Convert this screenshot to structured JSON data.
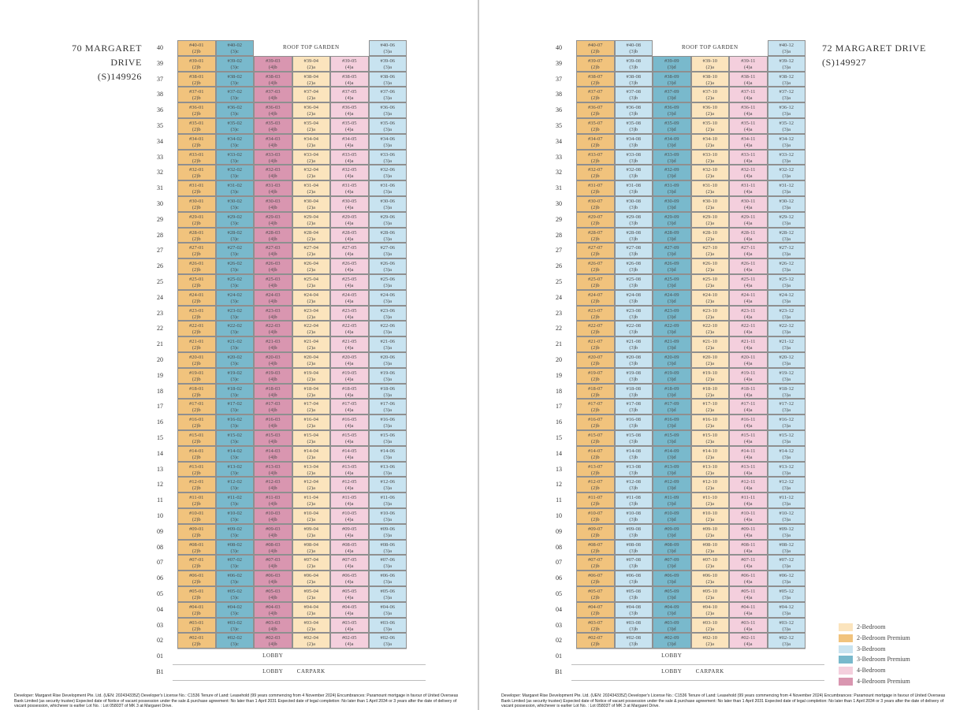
{
  "colors": {
    "2-Bedroom": "#fbe4bd",
    "2-Bedroom Premium": "#f1c37d",
    "3-Bedroom": "#c8e3f0",
    "3-Bedroom Premium": "#79b9cc",
    "4-Bedroom": "#f4cfdd",
    "4-Bedroom Premium": "#d996b0"
  },
  "legend": [
    {
      "label": "2-Bedroom",
      "key": "2-Bedroom"
    },
    {
      "label": "2-Bedroom Premium",
      "key": "2-Bedroom Premium"
    },
    {
      "label": "3-Bedroom",
      "key": "3-Bedroom"
    },
    {
      "label": "3-Bedroom Premium",
      "key": "3-Bedroom Premium"
    },
    {
      "label": "4-Bedroom",
      "key": "4-Bedroom"
    },
    {
      "label": "4-Bedroom Premium",
      "key": "4-Bedroom Premium"
    }
  ],
  "floors": [
    "40",
    "39",
    "37",
    "38",
    "36",
    "35",
    "34",
    "33",
    "32",
    "31",
    "30",
    "29",
    "28",
    "27",
    "26",
    "25",
    "24",
    "23",
    "22",
    "21",
    "20",
    "19",
    "18",
    "17",
    "16",
    "15",
    "14",
    "13",
    "12",
    "11",
    "10",
    "09",
    "08",
    "07",
    "06",
    "05",
    "04",
    "03",
    "02",
    "01",
    "B1"
  ],
  "unit_floors": [
    "39",
    "38",
    "37",
    "36",
    "35",
    "34",
    "33",
    "32",
    "31",
    "30",
    "29",
    "28",
    "27",
    "26",
    "25",
    "24",
    "23",
    "22",
    "21",
    "20",
    "19",
    "18",
    "17",
    "16",
    "15",
    "14",
    "13",
    "12",
    "11",
    "10",
    "09",
    "08",
    "07",
    "06",
    "05",
    "04",
    "03",
    "02"
  ],
  "blocks": [
    {
      "address_line1": "70 MARGARET DRIVE",
      "address_line2": "(S)149926",
      "stacks": [
        {
          "stack": "01",
          "type": "(2)b",
          "key": "2-Bedroom Premium"
        },
        {
          "stack": "02",
          "type": "(3)c",
          "key": "3-Bedroom Premium"
        },
        {
          "stack": "03",
          "type": "(4)b",
          "key": "4-Bedroom Premium"
        },
        {
          "stack": "04",
          "type": "(2)a",
          "key": "2-Bedroom"
        },
        {
          "stack": "05",
          "type": "(4)a",
          "key": "4-Bedroom"
        },
        {
          "stack": "06",
          "type": "(3)a",
          "key": "3-Bedroom"
        }
      ],
      "top_units": [
        {
          "id": "#40-01",
          "type": "(2)b",
          "key": "2-Bedroom Premium"
        },
        {
          "id": "#40-02",
          "type": "(3)c",
          "key": "3-Bedroom Premium"
        },
        {
          "id": "#40-06",
          "type": "(3)a",
          "key": "3-Bedroom"
        }
      ],
      "roof_garden": "ROOF TOP GARDEN",
      "lobby": "LOBBY",
      "carpark": "CARPARK",
      "footer": "Developer: Margaret Rise Development Pte. Ltd. (UEN: 202434335Z)  Developer's License No.: C1536  Tenure of Land: Leasehold (99 years commencing from 4 November 2024)  Encumbrances: Paramount mortgage in favour of United Overseas Bank Limited (as security trustee)  Expected date of Notice of vacant possession under the sale & purchase agreement: No later than 1 April 2031  Expected date of legal completion: No later than 1 April 2034 or 3 years after the date of delivery of vacant possession, whichever is earlier  Lot No. : Lot 05803T of MK 3 at Margaret Drive."
    },
    {
      "address_line1": "72 MARGARET DRIVE",
      "address_line2": "(S)149927",
      "stacks": [
        {
          "stack": "07",
          "type": "(2)b",
          "key": "2-Bedroom Premium"
        },
        {
          "stack": "08",
          "type": "(3)b",
          "key": "3-Bedroom"
        },
        {
          "stack": "09",
          "type": "(3)d",
          "key": "3-Bedroom Premium"
        },
        {
          "stack": "10",
          "type": "(2)a",
          "key": "2-Bedroom"
        },
        {
          "stack": "11",
          "type": "(4)a",
          "key": "4-Bedroom"
        },
        {
          "stack": "12",
          "type": "(3)a",
          "key": "3-Bedroom"
        }
      ],
      "top_units": [
        {
          "id": "#40-07",
          "type": "(2)b",
          "key": "2-Bedroom Premium"
        },
        {
          "id": "#40-08",
          "type": "(3)b",
          "key": "3-Bedroom"
        },
        {
          "id": "#40-12",
          "type": "(3)a",
          "key": "3-Bedroom"
        }
      ],
      "roof_garden": "ROOF TOP GARDEN",
      "lobby": "LOBBY",
      "carpark": "CARPARK",
      "footer": "Developer: Margaret Rise Development Pte. Ltd. (UEN: 202434335Z)  Developer's License No.: C1536  Tenure of Land: Leasehold (99 years commencing from 4 November 2024)  Encumbrances: Paramount mortgage in favour of United Overseas Bank Limited (as security trustee)  Expected date of Notice of vacant possession under the sale & purchase agreement: No later than 1 April 2031  Expected date of legal completion: No later than 1 April 2034 or 3 years after the date of delivery of vacant possession, whichever is earlier  Lot No. : Lot 05803T of MK 3 at Margaret Drive."
    }
  ]
}
